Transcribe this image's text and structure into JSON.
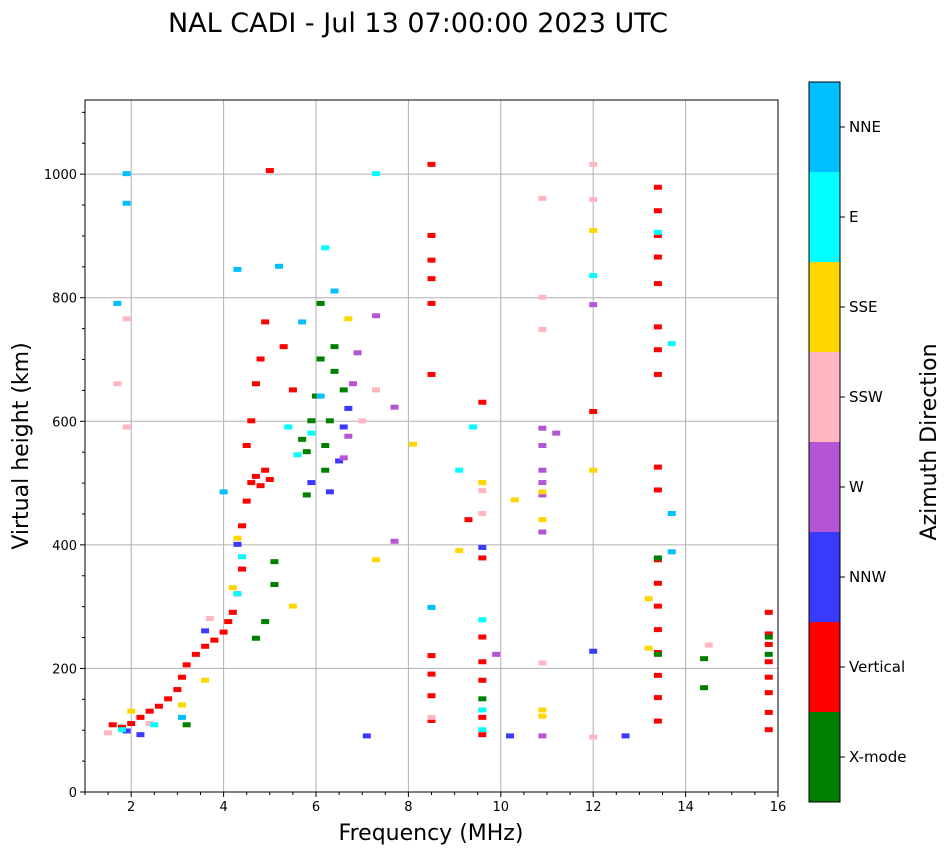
{
  "chart_data": {
    "type": "scatter",
    "title": "NAL CADI - Jul 13 07:00:00 2023 UTC",
    "xlabel": "Frequency (MHz)",
    "ylabel": "Virtual height (km)",
    "xlim": [
      1,
      16
    ],
    "ylim": [
      0,
      1120
    ],
    "xticks": [
      2,
      4,
      6,
      8,
      10,
      12,
      14,
      16
    ],
    "yticks": [
      0,
      200,
      400,
      600,
      800,
      1000
    ],
    "grid": true,
    "colorbar": {
      "label": "Azimuth Direction",
      "categories": [
        {
          "name": "X-mode",
          "color": "#008000"
        },
        {
          "name": "Vertical",
          "color": "#ff0000"
        },
        {
          "name": "NNW",
          "color": "#3a3aff"
        },
        {
          "name": "W",
          "color": "#b455d6"
        },
        {
          "name": "SSW",
          "color": "#ffb6c1"
        },
        {
          "name": "SSE",
          "color": "#ffd700"
        },
        {
          "name": "E",
          "color": "#00ffff"
        },
        {
          "name": "NNE",
          "color": "#00bfff"
        }
      ]
    },
    "series": [
      {
        "name": "Vertical",
        "points": [
          [
            1.6,
            108
          ],
          [
            1.8,
            104
          ],
          [
            2.0,
            110
          ],
          [
            2.2,
            120
          ],
          [
            2.4,
            130
          ],
          [
            2.6,
            138
          ],
          [
            2.8,
            150
          ],
          [
            3.0,
            165
          ],
          [
            3.1,
            185
          ],
          [
            3.2,
            205
          ],
          [
            3.4,
            222
          ],
          [
            3.6,
            235
          ],
          [
            3.8,
            245
          ],
          [
            4.0,
            258
          ],
          [
            4.1,
            275
          ],
          [
            4.2,
            290
          ],
          [
            4.3,
            320
          ],
          [
            4.4,
            360
          ],
          [
            4.4,
            430
          ],
          [
            4.5,
            470
          ],
          [
            4.6,
            500
          ],
          [
            4.7,
            510
          ],
          [
            4.8,
            495
          ],
          [
            4.9,
            520
          ],
          [
            5.0,
            505
          ],
          [
            4.5,
            560
          ],
          [
            4.6,
            600
          ],
          [
            4.7,
            660
          ],
          [
            4.8,
            700
          ],
          [
            4.9,
            760
          ],
          [
            5.0,
            1005
          ],
          [
            5.3,
            720
          ],
          [
            5.5,
            650
          ],
          [
            8.5,
            1015
          ],
          [
            8.5,
            900
          ],
          [
            8.5,
            860
          ],
          [
            8.5,
            830
          ],
          [
            8.5,
            790
          ],
          [
            8.5,
            675
          ],
          [
            8.5,
            220
          ],
          [
            8.5,
            190
          ],
          [
            8.5,
            155
          ],
          [
            8.5,
            115
          ],
          [
            9.3,
            440
          ],
          [
            9.6,
            378
          ],
          [
            9.6,
            630
          ],
          [
            9.6,
            250
          ],
          [
            9.6,
            210
          ],
          [
            9.6,
            180
          ],
          [
            9.6,
            120
          ],
          [
            9.6,
            92
          ],
          [
            12.0,
            615
          ],
          [
            13.4,
            978
          ],
          [
            13.4,
            940
          ],
          [
            13.4,
            900
          ],
          [
            13.4,
            865
          ],
          [
            13.4,
            822
          ],
          [
            13.4,
            752
          ],
          [
            13.4,
            715
          ],
          [
            13.4,
            675
          ],
          [
            13.4,
            525
          ],
          [
            13.4,
            488
          ],
          [
            13.4,
            375
          ],
          [
            13.4,
            337
          ],
          [
            13.4,
            300
          ],
          [
            13.4,
            262
          ],
          [
            13.4,
            225
          ],
          [
            13.4,
            188
          ],
          [
            13.4,
            152
          ],
          [
            13.4,
            114
          ],
          [
            15.8,
            290
          ],
          [
            15.8,
            255
          ],
          [
            15.8,
            238
          ],
          [
            15.8,
            210
          ],
          [
            15.8,
            185
          ],
          [
            15.8,
            160
          ],
          [
            15.8,
            128
          ],
          [
            15.8,
            100
          ]
        ]
      },
      {
        "name": "X-mode",
        "points": [
          [
            3.2,
            108
          ],
          [
            4.7,
            248
          ],
          [
            4.9,
            275
          ],
          [
            5.1,
            335
          ],
          [
            5.1,
            372
          ],
          [
            5.7,
            570
          ],
          [
            5.8,
            550
          ],
          [
            5.9,
            600
          ],
          [
            6.0,
            640
          ],
          [
            6.1,
            700
          ],
          [
            6.1,
            790
          ],
          [
            6.2,
            520
          ],
          [
            6.2,
            560
          ],
          [
            6.3,
            600
          ],
          [
            6.4,
            720
          ],
          [
            6.4,
            680
          ],
          [
            6.6,
            650
          ],
          [
            5.8,
            480
          ],
          [
            9.6,
            150
          ],
          [
            13.4,
            378
          ],
          [
            13.4,
            222
          ],
          [
            14.4,
            215
          ],
          [
            14.4,
            168
          ],
          [
            15.8,
            250
          ],
          [
            15.8,
            222
          ]
        ]
      },
      {
        "name": "NNW",
        "points": [
          [
            1.9,
            98
          ],
          [
            2.2,
            92
          ],
          [
            3.6,
            260
          ],
          [
            4.3,
            400
          ],
          [
            5.9,
            500
          ],
          [
            6.3,
            485
          ],
          [
            6.5,
            535
          ],
          [
            6.6,
            590
          ],
          [
            6.7,
            620
          ],
          [
            7.1,
            90
          ],
          [
            9.6,
            395
          ],
          [
            10.2,
            90
          ],
          [
            12.0,
            227
          ],
          [
            12.7,
            90
          ]
        ]
      },
      {
        "name": "W",
        "points": [
          [
            6.6,
            540
          ],
          [
            6.7,
            575
          ],
          [
            6.8,
            660
          ],
          [
            6.9,
            710
          ],
          [
            7.3,
            770
          ],
          [
            7.7,
            622
          ],
          [
            7.7,
            405
          ],
          [
            9.9,
            222
          ],
          [
            10.9,
            588
          ],
          [
            10.9,
            560
          ],
          [
            10.9,
            520
          ],
          [
            10.9,
            500
          ],
          [
            10.9,
            480
          ],
          [
            10.9,
            420
          ],
          [
            10.9,
            90
          ],
          [
            11.2,
            580
          ],
          [
            12.0,
            788
          ]
        ]
      },
      {
        "name": "SSW",
        "points": [
          [
            1.5,
            95
          ],
          [
            1.7,
            660
          ],
          [
            1.9,
            765
          ],
          [
            1.9,
            590
          ],
          [
            2.4,
            110
          ],
          [
            3.7,
            280
          ],
          [
            7.0,
            600
          ],
          [
            7.3,
            650
          ],
          [
            8.5,
            120
          ],
          [
            9.6,
            487
          ],
          [
            9.6,
            450
          ],
          [
            10.9,
            960
          ],
          [
            10.9,
            800
          ],
          [
            10.9,
            748
          ],
          [
            10.9,
            208
          ],
          [
            12.0,
            1015
          ],
          [
            12.0,
            958
          ],
          [
            12.0,
            88
          ],
          [
            14.5,
            237
          ]
        ]
      },
      {
        "name": "SSE",
        "points": [
          [
            2.0,
            130
          ],
          [
            3.1,
            140
          ],
          [
            3.6,
            180
          ],
          [
            4.2,
            330
          ],
          [
            4.3,
            410
          ],
          [
            5.5,
            300
          ],
          [
            6.7,
            765
          ],
          [
            7.3,
            375
          ],
          [
            8.1,
            562
          ],
          [
            9.1,
            390
          ],
          [
            9.6,
            500
          ],
          [
            10.3,
            472
          ],
          [
            10.9,
            485
          ],
          [
            10.9,
            440
          ],
          [
            10.9,
            132
          ],
          [
            10.9,
            122
          ],
          [
            12.0,
            908
          ],
          [
            12.0,
            520
          ],
          [
            13.2,
            312
          ],
          [
            13.2,
            232
          ]
        ]
      },
      {
        "name": "E",
        "points": [
          [
            1.8,
            100
          ],
          [
            2.5,
            108
          ],
          [
            4.3,
            320
          ],
          [
            4.4,
            380
          ],
          [
            5.4,
            590
          ],
          [
            5.6,
            545
          ],
          [
            5.9,
            580
          ],
          [
            6.2,
            880
          ],
          [
            7.3,
            1000
          ],
          [
            9.1,
            520
          ],
          [
            9.4,
            590
          ],
          [
            9.6,
            278
          ],
          [
            9.6,
            132
          ],
          [
            9.6,
            100
          ],
          [
            12.0,
            835
          ],
          [
            13.4,
            905
          ],
          [
            13.7,
            725
          ]
        ]
      },
      {
        "name": "NNE",
        "points": [
          [
            1.7,
            790
          ],
          [
            1.9,
            1000
          ],
          [
            1.9,
            952
          ],
          [
            3.1,
            120
          ],
          [
            4.0,
            485
          ],
          [
            4.3,
            845
          ],
          [
            5.2,
            850
          ],
          [
            5.7,
            760
          ],
          [
            6.1,
            640
          ],
          [
            6.4,
            810
          ],
          [
            8.5,
            298
          ],
          [
            13.7,
            450
          ],
          [
            13.7,
            388
          ]
        ]
      }
    ]
  }
}
